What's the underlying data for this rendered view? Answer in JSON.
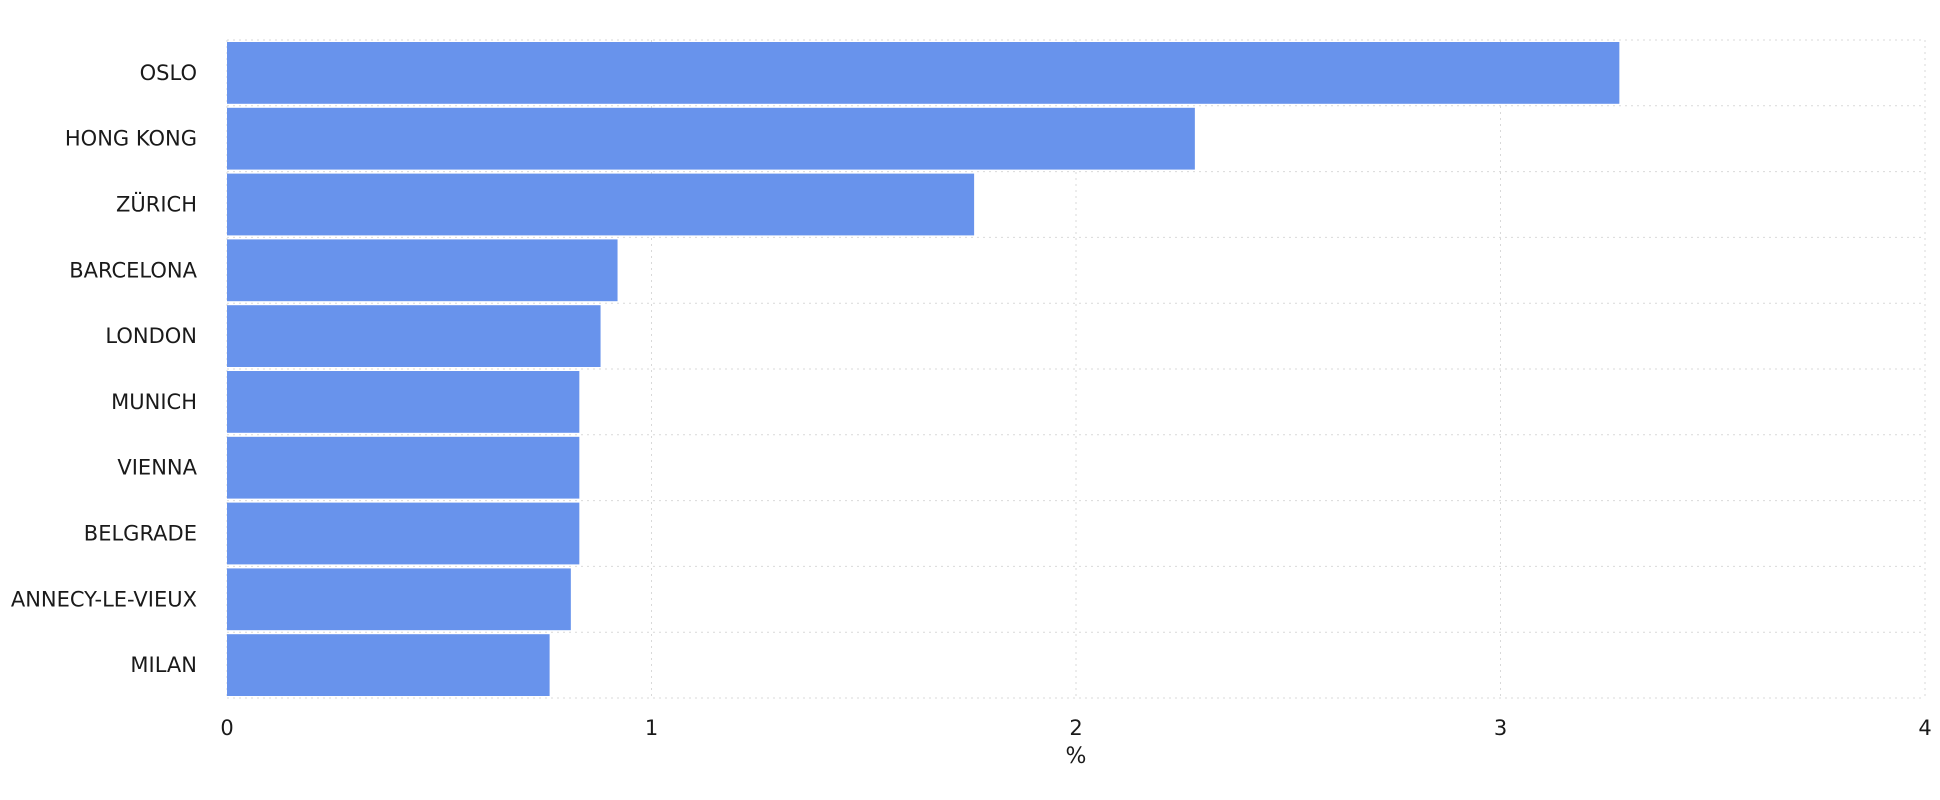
{
  "chart_data": {
    "type": "bar",
    "orientation": "horizontal",
    "categories": [
      "OSLO",
      "HONG KONG",
      "ZÜRICH",
      "BARCELONA",
      "LONDON",
      "MUNICH",
      "VIENNA",
      "BELGRADE",
      "ANNECY-LE-VIEUX",
      "MILAN"
    ],
    "values": [
      3.28,
      2.28,
      1.76,
      0.92,
      0.88,
      0.83,
      0.83,
      0.83,
      0.81,
      0.76
    ],
    "xlabel": "%",
    "ylabel": "",
    "xlim": [
      0,
      4
    ],
    "xticks": [
      "0",
      "1",
      "2",
      "3",
      "4"
    ],
    "grid": true,
    "colors": {
      "bar": "#6893ec",
      "grid": "#d9d9d9",
      "text": "#1a1a1a"
    }
  }
}
